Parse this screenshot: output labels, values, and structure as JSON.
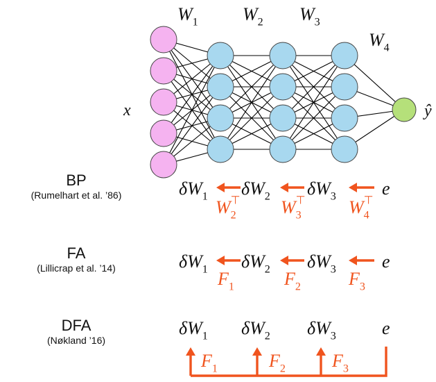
{
  "network": {
    "input_label": "x",
    "output_label": "ŷ",
    "weights": [
      "W",
      "W",
      "W",
      "W"
    ],
    "weight_subscripts": [
      "1",
      "2",
      "3",
      "4"
    ],
    "layers": [
      5,
      4,
      4,
      4,
      1
    ],
    "colors": {
      "input": "#f5b3f0",
      "hidden": "#a8d8ef",
      "output": "#b5e07a",
      "edge": "#000000"
    }
  },
  "methods": [
    {
      "name": "BP",
      "citation": "(Rumelhart et al. ’86)"
    },
    {
      "name": "FA",
      "citation": "(Lillicrap et al. ’14)"
    },
    {
      "name": "DFA",
      "citation": "(Nøkland ’16)"
    }
  ],
  "rows": {
    "delta_terms": [
      "δW",
      "δW",
      "δW"
    ],
    "delta_subscripts": [
      "1",
      "2",
      "3"
    ],
    "error": "e",
    "bp_feedback": {
      "base": "W",
      "subs": [
        "2",
        "3",
        "4"
      ],
      "sup": "⊤"
    },
    "fa_feedback": {
      "base": "F",
      "subs": [
        "1",
        "2",
        "3"
      ]
    },
    "dfa_feedback": {
      "base": "F",
      "subs": [
        "1",
        "2",
        "3"
      ]
    },
    "arrow_color": "#f0541e"
  }
}
